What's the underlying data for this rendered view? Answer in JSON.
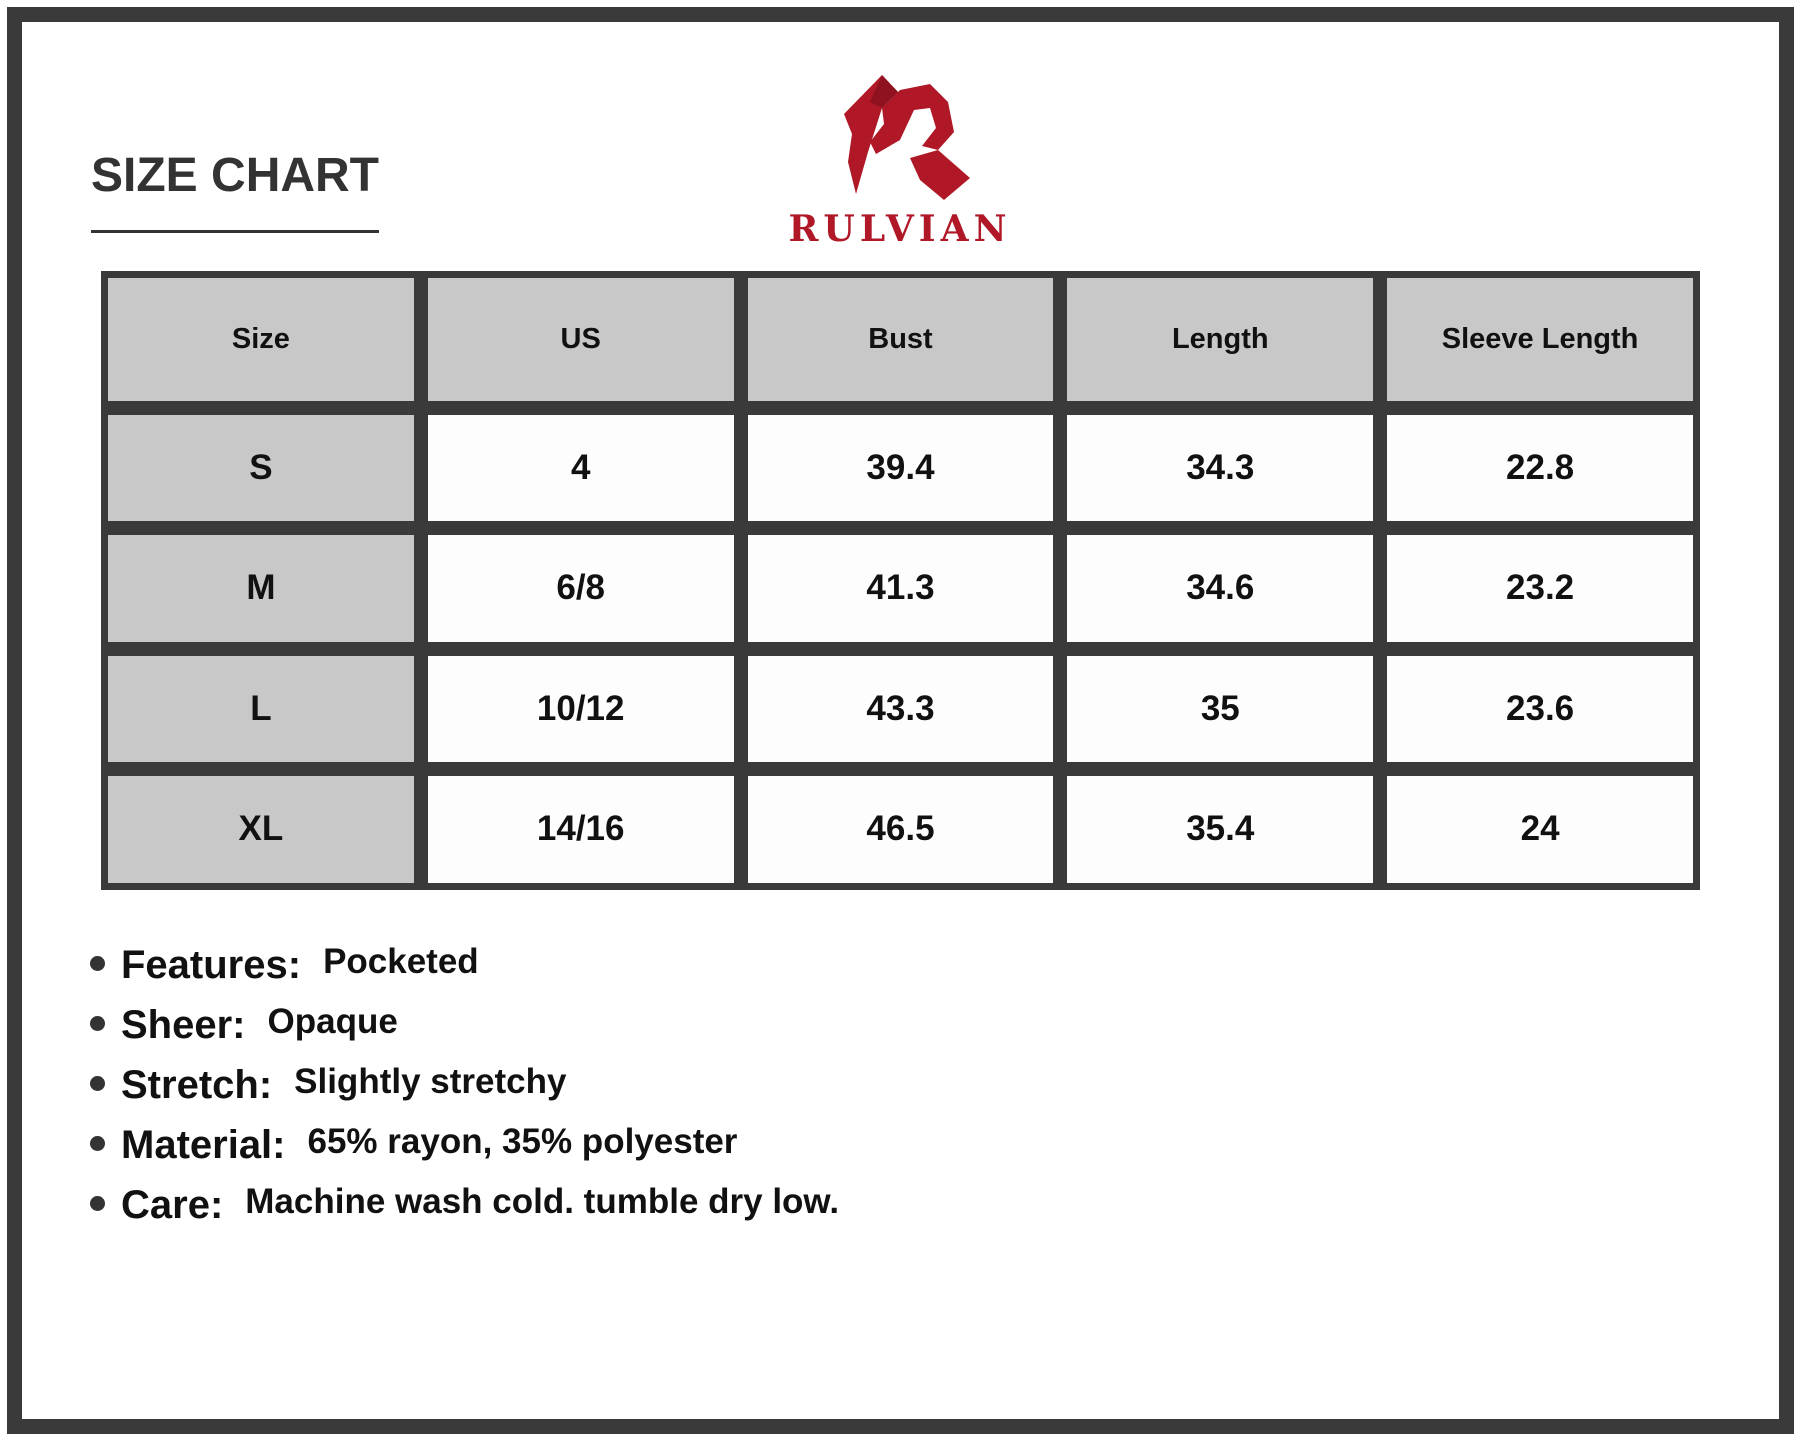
{
  "title": "SIZE CHART",
  "brand": {
    "name": "RULVIAN",
    "color": "#b01827"
  },
  "table": {
    "headers": [
      "Size",
      "US",
      "Bust",
      "Length",
      "Sleeve Length"
    ],
    "rows": [
      [
        "S",
        "4",
        "39.4",
        "34.3",
        "22.8"
      ],
      [
        "M",
        "6/8",
        "41.3",
        "34.6",
        "23.2"
      ],
      [
        "L",
        "10/12",
        "43.3",
        "35",
        "23.6"
      ],
      [
        "XL",
        "14/16",
        "46.5",
        "35.4",
        "24"
      ]
    ]
  },
  "features": [
    {
      "label": "Features:",
      "value": "Pocketed"
    },
    {
      "label": "Sheer:",
      "value": "Opaque"
    },
    {
      "label": "Stretch:",
      "value": "Slightly stretchy"
    },
    {
      "label": "Material:",
      "value": "65% rayon, 35% polyester"
    },
    {
      "label": "Care:",
      "value": "Machine wash cold. tumble dry low."
    }
  ]
}
